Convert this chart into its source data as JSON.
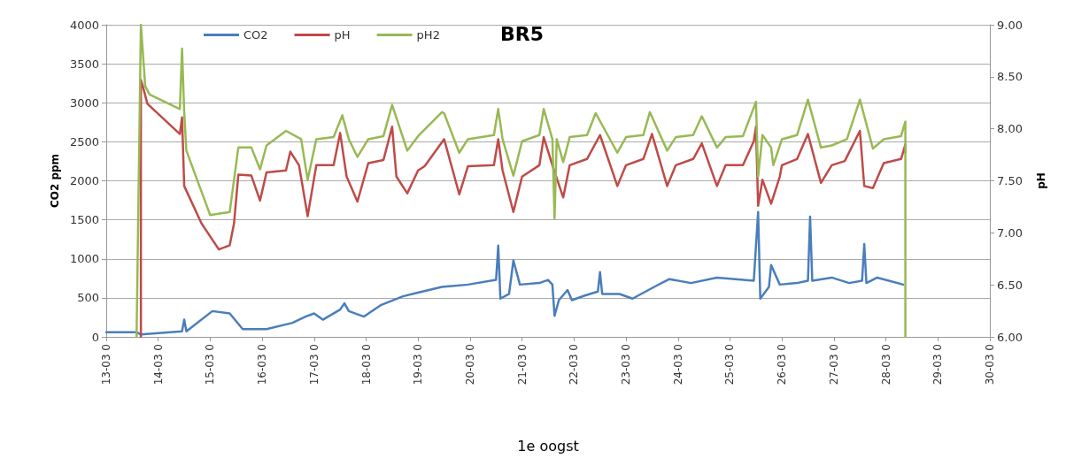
{
  "chart_data": {
    "type": "line",
    "title": "BR5",
    "xlabel": "1e oogst",
    "ylabel": "CO2 ppm",
    "y2label": "pH",
    "xlim": [
      "--03-13",
      "--03-30"
    ],
    "xticks": [
      {
        "value": "--03-13",
        "label": "13-03 0"
      },
      {
        "value": "--03-14",
        "label": "14-03 0"
      },
      {
        "value": "--03-15",
        "label": "15-03 0"
      },
      {
        "value": "--03-16",
        "label": "16-03 0"
      },
      {
        "value": "--03-17",
        "label": "17-03 0"
      },
      {
        "value": "--03-18",
        "label": "18-03 0"
      },
      {
        "value": "--03-19",
        "label": "19-03 0"
      },
      {
        "value": "--03-20",
        "label": "20-03 0"
      },
      {
        "value": "--03-21",
        "label": "21-03 0"
      },
      {
        "value": "--03-22",
        "label": "22-03 0"
      },
      {
        "value": "--03-23",
        "label": "23-03 0"
      },
      {
        "value": "--03-24",
        "label": "24-03 0"
      },
      {
        "value": "--03-25",
        "label": "25-03 0"
      },
      {
        "value": "--03-26",
        "label": "26-03 0"
      },
      {
        "value": "--03-27",
        "label": "27-03 0"
      },
      {
        "value": "--03-28",
        "label": "28-03 0"
      },
      {
        "value": "--03-29",
        "label": "29-03 0"
      },
      {
        "value": "--03-30",
        "label": "30-03 0"
      }
    ],
    "ylim": [
      0,
      4000
    ],
    "yticks": [
      0,
      500,
      1000,
      1500,
      2000,
      2500,
      3000,
      3500,
      4000
    ],
    "y2lim": [
      6,
      9
    ],
    "y2ticks": [
      {
        "value": 6,
        "label": "6.00"
      },
      {
        "value": 6.5,
        "label": "6.50"
      },
      {
        "value": 7,
        "label": "7.00"
      },
      {
        "value": 7.5,
        "label": "7.50"
      },
      {
        "value": 8,
        "label": "8.00"
      },
      {
        "value": 8.5,
        "label": "8.50"
      },
      {
        "value": 9,
        "label": "9.00"
      }
    ],
    "grid": "y",
    "legend": "top left",
    "marker": "none",
    "line_style": "solid",
    "series": [
      {
        "name": "CO2",
        "color": "#4a7ebb",
        "x": [
          "--03-13T00:00",
          "--03-13T14:00",
          "--03-13T16:00",
          "--03-14T11:00",
          "--03-14T12:00",
          "--03-14T13:00",
          "--03-15T01:00",
          "--03-15T09:00",
          "--03-15T15:00",
          "--03-16T02:00",
          "--03-16T14:00",
          "--03-16T20:00",
          "--03-17T00:00",
          "--03-17T04:00",
          "--03-17T12:00",
          "--03-17T14:00",
          "--03-17T16:00",
          "--03-17T23:00",
          "--03-18T07:00",
          "--03-18T17:00",
          "--03-18T23:00",
          "--03-19T11:00",
          "--03-19T23:00",
          "--03-20T12:00",
          "--03-20T13:00",
          "--03-20T14:00",
          "--03-20T18:00",
          "--03-20T20:00",
          "--03-20T23:00",
          "--03-21T08:00",
          "--03-21T12:00",
          "--03-21T14:00",
          "--03-21T15:00",
          "--03-21T17:00",
          "--03-21T21:00",
          "--03-21T23:00",
          "--03-22T05:00",
          "--03-22T11:00",
          "--03-22T12:00",
          "--03-22T13:00",
          "--03-22T21:00",
          "--03-23T03:00",
          "--03-23T13:00",
          "--03-23T20:00",
          "--03-24T06:00",
          "--03-24T18:00",
          "--03-25T11:00",
          "--03-25T13:00",
          "--03-25T14:00",
          "--03-25T18:00",
          "--03-25T19:00",
          "--03-25T23:00",
          "--03-26T07:00",
          "--03-26T12:00",
          "--03-26T13:00",
          "--03-26T14:00",
          "--03-26T23:00",
          "--03-27T07:00",
          "--03-27T13:00",
          "--03-27T14:00",
          "--03-27T15:00",
          "--03-27T20:00",
          "--03-28T08:00"
        ],
        "values": [
          60,
          60,
          30,
          70,
          220,
          70,
          330,
          300,
          100,
          100,
          180,
          260,
          300,
          220,
          350,
          430,
          330,
          260,
          410,
          520,
          560,
          640,
          670,
          730,
          1170,
          490,
          550,
          980,
          670,
          690,
          730,
          670,
          270,
          470,
          600,
          470,
          530,
          580,
          830,
          550,
          550,
          490,
          640,
          740,
          690,
          760,
          720,
          1600,
          490,
          640,
          920,
          670,
          690,
          720,
          1540,
          720,
          760,
          690,
          720,
          1190,
          690,
          760,
          670
        ]
      },
      {
        "name": "pH",
        "color": "#be4b48",
        "axis": "y2",
        "x": [
          "--03-13T16:00",
          "--03-13T16:00",
          "--03-13T17:00",
          "--03-13T19:00",
          "--03-14T10:00",
          "--03-14T11:00",
          "--03-14T12:00",
          "--03-14T20:00",
          "--03-15T04:00",
          "--03-15T09:00",
          "--03-15T11:00",
          "--03-15T13:00",
          "--03-15T19:00",
          "--03-15T23:00",
          "--03-16T02:00",
          "--03-16T11:00",
          "--03-16T13:00",
          "--03-16T17:00",
          "--03-16T21:00",
          "--03-17T01:00",
          "--03-17T09:00",
          "--03-17T12:00",
          "--03-17T15:00",
          "--03-17T20:00",
          "--03-18T01:00",
          "--03-18T08:00",
          "--03-18T12:00",
          "--03-18T14:00",
          "--03-18T19:00",
          "--03-19T00:00",
          "--03-19T03:00",
          "--03-19T12:00",
          "--03-19T16:00",
          "--03-19T19:00",
          "--03-19T23:00",
          "--03-20T11:00",
          "--03-20T13:00",
          "--03-20T15:00",
          "--03-20T20:00",
          "--03-21T00:00",
          "--03-21T08:00",
          "--03-21T10:00",
          "--03-21T14:00",
          "--03-21T19:00",
          "--03-21T22:00",
          "--03-22T06:00",
          "--03-22T12:00",
          "--03-22T20:00",
          "--03-23T00:00",
          "--03-23T08:00",
          "--03-23T12:00",
          "--03-23T19:00",
          "--03-23T23:00",
          "--03-24T07:00",
          "--03-24T11:00",
          "--03-24T18:00",
          "--03-24T22:00",
          "--03-25T06:00",
          "--03-25T11:00",
          "--03-25T12:00",
          "--03-25T13:00",
          "--03-25T15:00",
          "--03-25T19:00",
          "--03-25T23:00",
          "--03-26T00:00",
          "--03-26T07:00",
          "--03-26T12:00",
          "--03-26T18:00",
          "--03-26T23:00",
          "--03-27T05:00",
          "--03-27T12:00",
          "--03-27T14:00",
          "--03-27T18:00",
          "--03-27T23:00",
          "--03-28T07:00",
          "--03-28T09:00",
          "--03-28T09:00"
        ],
        "values": [
          6.0,
          8.47,
          8.4,
          8.24,
          7.95,
          8.11,
          7.45,
          7.09,
          6.84,
          6.88,
          7.09,
          7.56,
          7.55,
          7.31,
          7.58,
          7.6,
          7.78,
          7.65,
          7.16,
          7.65,
          7.65,
          7.96,
          7.54,
          7.3,
          7.67,
          7.7,
          8.02,
          7.54,
          7.38,
          7.6,
          7.64,
          7.9,
          7.6,
          7.37,
          7.64,
          7.65,
          7.9,
          7.6,
          7.2,
          7.54,
          7.65,
          7.92,
          7.65,
          7.34,
          7.65,
          7.71,
          7.94,
          7.45,
          7.65,
          7.71,
          7.95,
          7.45,
          7.65,
          7.71,
          7.86,
          7.45,
          7.65,
          7.65,
          7.88,
          8.02,
          7.26,
          7.51,
          7.28,
          7.54,
          7.65,
          7.71,
          7.95,
          7.48,
          7.65,
          7.69,
          7.98,
          7.45,
          7.43,
          7.67,
          7.71,
          7.85,
          7.77
        ]
      },
      {
        "name": "pH2",
        "color": "#98b954",
        "axis": "y2",
        "x": [
          "--03-13T14:00",
          "--03-13T16:00",
          "--03-13T18:00",
          "--03-13T20:00",
          "--03-14T10:00",
          "--03-14T11:00",
          "--03-14T12:00",
          "--03-14T13:00",
          "--03-15T00:00",
          "--03-15T09:00",
          "--03-15T13:00",
          "--03-15T19:00",
          "--03-15T23:00",
          "--03-16T02:00",
          "--03-16T11:00",
          "--03-16T18:00",
          "--03-16T21:00",
          "--03-17T01:00",
          "--03-17T09:00",
          "--03-17T13:00",
          "--03-17T16:00",
          "--03-17T20:00",
          "--03-18T01:00",
          "--03-18T08:00",
          "--03-18T12:00",
          "--03-18T19:00",
          "--03-19T00:00",
          "--03-19T11:00",
          "--03-19T12:00",
          "--03-19T19:00",
          "--03-19T23:00",
          "--03-20T11:00",
          "--03-20T13:00",
          "--03-20T15:00",
          "--03-20T20:00",
          "--03-21T00:00",
          "--03-21T08:00",
          "--03-21T10:00",
          "--03-21T14:00",
          "--03-21T15:00",
          "--03-21T16:00",
          "--03-21T19:00",
          "--03-21T22:00",
          "--03-22T06:00",
          "--03-22T10:00",
          "--03-22T20:00",
          "--03-23T00:00",
          "--03-23T08:00",
          "--03-23T11:00",
          "--03-23T19:00",
          "--03-23T23:00",
          "--03-24T07:00",
          "--03-24T11:00",
          "--03-24T18:00",
          "--03-24T22:00",
          "--03-25T06:00",
          "--03-25T12:00",
          "--03-25T13:00",
          "--03-25T15:00",
          "--03-25T19:00",
          "--03-25T20:00",
          "--03-26T00:00",
          "--03-26T07:00",
          "--03-26T12:00",
          "--03-26T18:00",
          "--03-26T23:00",
          "--03-27T06:00",
          "--03-27T12:00",
          "--03-27T18:00",
          "--03-27T23:00",
          "--03-28T07:00",
          "--03-28T09:00",
          "--03-28T09:00"
        ],
        "values": [
          6.0,
          9.0,
          8.41,
          8.33,
          8.19,
          8.77,
          8.16,
          7.79,
          7.17,
          7.2,
          7.82,
          7.82,
          7.61,
          7.84,
          7.98,
          7.9,
          7.51,
          7.9,
          7.92,
          8.13,
          7.9,
          7.73,
          7.9,
          7.93,
          8.23,
          7.79,
          7.93,
          8.16,
          8.15,
          7.77,
          7.9,
          7.94,
          8.19,
          7.9,
          7.55,
          7.88,
          7.94,
          8.19,
          7.9,
          7.14,
          7.9,
          7.68,
          7.92,
          7.94,
          8.15,
          7.77,
          7.92,
          7.94,
          8.16,
          7.79,
          7.92,
          7.94,
          8.12,
          7.82,
          7.92,
          7.93,
          8.26,
          7.54,
          7.94,
          7.82,
          7.65,
          7.9,
          7.94,
          8.28,
          7.82,
          7.84,
          7.9,
          8.28,
          7.81,
          7.9,
          7.93,
          8.07,
          6.0
        ]
      }
    ]
  }
}
